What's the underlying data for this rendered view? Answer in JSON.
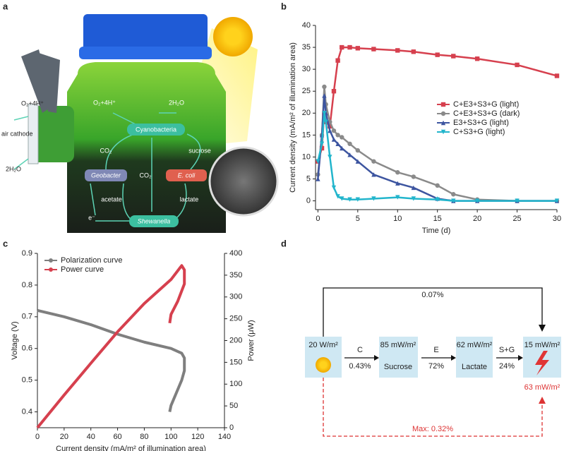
{
  "panel_labels": [
    "a",
    "b",
    "c",
    "d"
  ],
  "illustration": {
    "cathode_in": "O₂+4H⁺",
    "cathode_label": "air cathode",
    "cathode_out": "2H₂O",
    "top_in": "O₂+4H⁺",
    "top_out": "2H₂O",
    "cyanobacteria": "Cyanobacteria",
    "co2_left": "CO₂",
    "sucrose": "sucrose",
    "geobacter": "Geobacter",
    "co2_mid": "CO₂",
    "ecoli": "E. coli",
    "acetate": "acetate",
    "lactate": "lactate",
    "shewanella": "Shewanella",
    "electron": "e⁻"
  },
  "chart_data": [
    {
      "type": "line",
      "ylabel": "Current density (mA/m² of illumination area)",
      "xlabel": "Time (d)",
      "x": [
        0,
        0.5,
        0.8,
        1,
        1.5,
        2,
        2.5,
        3,
        4,
        5,
        7,
        10,
        12,
        15,
        17,
        20,
        25,
        30
      ],
      "series": [
        {
          "name": "C+E3+S3+G (light)",
          "color": "#d6404e",
          "marker": "square",
          "values": [
            9,
            12,
            20,
            18,
            17,
            25,
            32,
            35,
            35,
            34.8,
            34.6,
            34.3,
            34,
            33.3,
            33,
            32.4,
            31,
            28.5
          ]
        },
        {
          "name": "C+E3+S3+G (dark)",
          "color": "#8a8a8a",
          "marker": "circle",
          "values": [
            6,
            15,
            26,
            22,
            18,
            16,
            15,
            14.5,
            13,
            11.5,
            9,
            6.5,
            5.5,
            3.5,
            1.5,
            0.3,
            0,
            0
          ]
        },
        {
          "name": "E3+S3+G (light)",
          "color": "#3d55a0",
          "marker": "triangle-up",
          "values": [
            5,
            15,
            24,
            20,
            16,
            14,
            13,
            12,
            10.5,
            9,
            6,
            4,
            3,
            0.5,
            0,
            0,
            0,
            0
          ]
        },
        {
          "name": "C+S3+G (light)",
          "color": "#22b5cc",
          "marker": "triangle-down",
          "values": [
            9,
            13,
            20,
            18,
            10,
            3,
            1,
            0.5,
            0.3,
            0.3,
            0.5,
            0.8,
            0.5,
            0.3,
            0,
            0,
            0,
            0
          ]
        }
      ],
      "xlim": [
        -0.3,
        30
      ],
      "xticks": [
        0,
        5,
        10,
        15,
        20,
        25,
        30
      ],
      "ylim": [
        -2,
        40
      ],
      "yticks": [
        0,
        5,
        10,
        15,
        20,
        25,
        30,
        35,
        40
      ],
      "grid": false,
      "legend": "center right"
    },
    {
      "type": "line",
      "xlabel": "Current density (mA/m² of illumination area)",
      "ylabel": "Voltage (V)",
      "y2label": "Power (μW)",
      "series": [
        {
          "name": "Polarization curve",
          "color": "#7f7f7f",
          "x": [
            0,
            20,
            40,
            60,
            80,
            100,
            108,
            110,
            110,
            108,
            104,
            100,
            99
          ],
          "values": [
            0.72,
            0.7,
            0.675,
            0.645,
            0.62,
            0.6,
            0.585,
            0.57,
            0.53,
            0.5,
            0.46,
            0.42,
            0.4
          ]
        },
        {
          "name": "Power curve",
          "color": "#d6404e",
          "axis": "y2",
          "x": [
            0,
            20,
            40,
            60,
            80,
            100,
            108,
            110,
            110,
            105,
            100,
            99
          ],
          "values": [
            0,
            75,
            148,
            220,
            285,
            340,
            372,
            362,
            330,
            290,
            260,
            240
          ]
        }
      ],
      "xlim": [
        0,
        140
      ],
      "xticks": [
        0,
        20,
        40,
        60,
        80,
        100,
        120,
        140
      ],
      "ylim": [
        0.35,
        0.9
      ],
      "yticks": [
        0.4,
        0.5,
        0.6,
        0.7,
        0.8,
        0.9
      ],
      "y2lim": [
        0,
        400
      ],
      "y2ticks": [
        0,
        50,
        100,
        150,
        200,
        250,
        300,
        350,
        400
      ],
      "grid": false,
      "legend": "upper left"
    }
  ],
  "flow": {
    "direct": "0.07%",
    "boxes": [
      {
        "power": "20 W/m²"
      },
      {
        "power": "85 mW/m²",
        "label": "Sucrose"
      },
      {
        "power": "62 mW/m²",
        "label": "Lactate"
      },
      {
        "power": "15 mW/m²"
      }
    ],
    "steps": [
      {
        "agent": "C",
        "efficiency": "0.43%"
      },
      {
        "agent": "E",
        "efficiency": "72%"
      },
      {
        "agent": "S+G",
        "efficiency": "24%"
      }
    ],
    "max_power": "63 mW/m²",
    "max_efficiency": "Max: 0.32%"
  }
}
